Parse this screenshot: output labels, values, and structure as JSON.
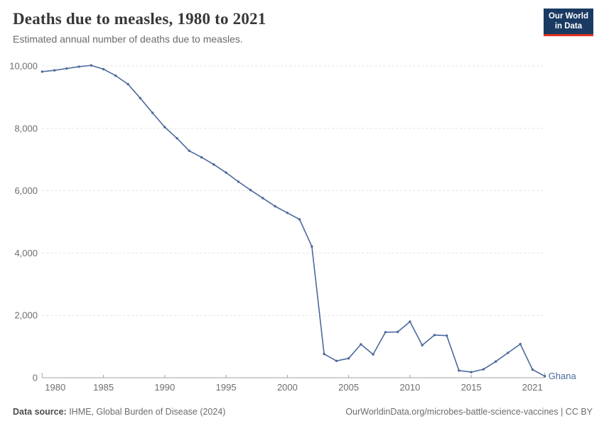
{
  "header": {
    "logo_line1": "Our World",
    "logo_line2": "in Data"
  },
  "chart_data": {
    "type": "line",
    "title": "Deaths due to measles, 1980 to 2021",
    "subtitle": "Estimated annual number of deaths due to measles.",
    "entity": "Ghana",
    "x": [
      1980,
      1981,
      1982,
      1983,
      1984,
      1985,
      1986,
      1987,
      1988,
      1989,
      1990,
      1991,
      1992,
      1993,
      1994,
      1995,
      1996,
      1997,
      1998,
      1999,
      2000,
      2001,
      2002,
      2003,
      2004,
      2005,
      2006,
      2007,
      2008,
      2009,
      2010,
      2011,
      2012,
      2013,
      2014,
      2015,
      2016,
      2017,
      2018,
      2019,
      2020,
      2021
    ],
    "values": [
      9820,
      9860,
      9920,
      9980,
      10020,
      9900,
      9690,
      9420,
      8970,
      8500,
      8040,
      7680,
      7280,
      7070,
      6840,
      6580,
      6290,
      6020,
      5760,
      5500,
      5290,
      5080,
      4210,
      760,
      540,
      620,
      1070,
      750,
      1460,
      1470,
      1800,
      1040,
      1370,
      1350,
      230,
      180,
      270,
      520,
      800,
      1080,
      260,
      50
    ],
    "xlim": [
      1980,
      2021
    ],
    "ylim": [
      0,
      10000
    ],
    "xticks": [
      1980,
      1985,
      1990,
      1995,
      2000,
      2005,
      2010,
      2015,
      2021
    ],
    "yticks": [
      0,
      2000,
      4000,
      6000,
      8000,
      10000
    ],
    "grid": "dashed-horizontal",
    "line_color": "#4C6A9C",
    "entity_label_color": "#4C6A9C",
    "xlabel": "",
    "ylabel": ""
  },
  "footer": {
    "source_label": "Data source:",
    "source_text": " IHME, Global Burden of Disease (2024)",
    "right_text": "OurWorldinData.org/microbes-battle-science-vaccines | CC BY"
  }
}
